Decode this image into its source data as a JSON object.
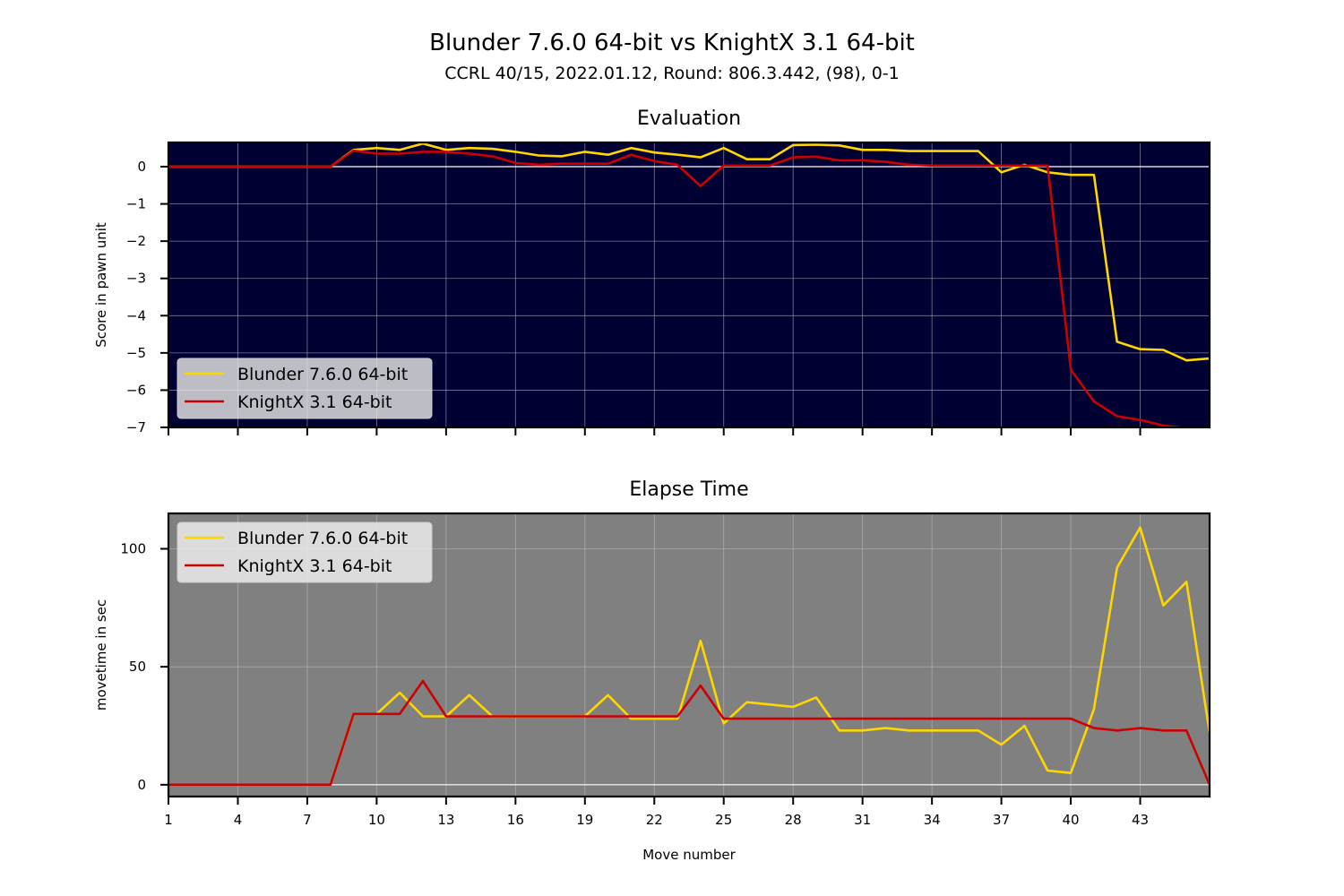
{
  "figure": {
    "title": "Blunder 7.6.0 64-bit vs KnightX 3.1 64-bit",
    "subtitle": "CCRL 40/15, 2022.01.12, Round: 806.3.442, (98), 0-1"
  },
  "colors": {
    "blunder": "#ffd700",
    "knightx": "#cc0000",
    "eval_bg": "#000033",
    "time_bg": "#808080"
  },
  "chart_data": [
    {
      "type": "line",
      "title": "Evaluation",
      "xlabel": "",
      "ylabel": "Score in pawn unit",
      "xlim": [
        1,
        46
      ],
      "ylim": [
        -7,
        0.65
      ],
      "x_ticks": [
        1,
        4,
        7,
        10,
        13,
        16,
        19,
        22,
        25,
        28,
        31,
        34,
        37,
        40,
        43
      ],
      "x_tick_labels_visible": false,
      "y_ticks": [
        0,
        -1,
        -2,
        -3,
        -4,
        -5,
        -6,
        -7
      ],
      "y_tick_labels": [
        "0",
        "−1",
        "−2",
        "−3",
        "−4",
        "−5",
        "−6",
        "−7"
      ],
      "grid": true,
      "legend": "lower-left",
      "x": [
        1,
        2,
        3,
        4,
        5,
        6,
        7,
        8,
        9,
        10,
        11,
        12,
        13,
        14,
        15,
        16,
        17,
        18,
        19,
        20,
        21,
        22,
        23,
        24,
        25,
        26,
        27,
        28,
        29,
        30,
        31,
        32,
        33,
        34,
        35,
        36,
        37,
        38,
        39,
        40,
        41,
        42,
        43,
        44,
        45,
        46
      ],
      "series": [
        {
          "name": "Blunder 7.6.0 64-bit",
          "color": "#ffd700",
          "values": [
            0,
            0,
            0,
            0,
            0,
            0,
            0,
            0,
            0.45,
            0.5,
            0.45,
            0.62,
            0.45,
            0.5,
            0.48,
            0.4,
            0.3,
            0.28,
            0.4,
            0.32,
            0.5,
            0.38,
            0.32,
            0.25,
            0.5,
            0.2,
            0.2,
            0.58,
            0.59,
            0.57,
            0.45,
            0.45,
            0.42,
            0.42,
            0.42,
            0.42,
            -0.15,
            0.05,
            -0.15,
            -0.22,
            -0.22,
            -4.7,
            -4.9,
            -4.92,
            -5.2,
            -5.15
          ]
        },
        {
          "name": "KnightX 3.1 64-bit",
          "color": "#cc0000",
          "values": [
            0,
            0,
            0,
            0,
            0,
            0,
            0,
            0,
            0.43,
            0.35,
            0.35,
            0.4,
            0.4,
            0.35,
            0.28,
            0.1,
            0.05,
            0.08,
            0.08,
            0.08,
            0.32,
            0.15,
            0.05,
            -0.52,
            0.03,
            0.03,
            0.03,
            0.25,
            0.27,
            0.17,
            0.17,
            0.13,
            0.05,
            0.03,
            0.03,
            0.03,
            0.03,
            0.03,
            0.03,
            -5.45,
            -6.3,
            -6.7,
            -6.8,
            -6.95,
            -7.02,
            -7.0
          ]
        }
      ]
    },
    {
      "type": "line",
      "title": "Elapse Time",
      "xlabel": "Move number",
      "ylabel": "movetime in sec",
      "xlim": [
        1,
        46
      ],
      "ylim": [
        -5,
        115
      ],
      "x_ticks": [
        1,
        4,
        7,
        10,
        13,
        16,
        19,
        22,
        25,
        28,
        31,
        34,
        37,
        40,
        43
      ],
      "x_tick_labels": [
        "1",
        "4",
        "7",
        "10",
        "13",
        "16",
        "19",
        "22",
        "25",
        "28",
        "31",
        "34",
        "37",
        "40",
        "43"
      ],
      "y_ticks": [
        0,
        50,
        100
      ],
      "y_tick_labels": [
        "0",
        "50",
        "100"
      ],
      "grid": true,
      "legend": "top-left",
      "x": [
        1,
        2,
        3,
        4,
        5,
        6,
        7,
        8,
        9,
        10,
        11,
        12,
        13,
        14,
        15,
        16,
        17,
        18,
        19,
        20,
        21,
        22,
        23,
        24,
        25,
        26,
        27,
        28,
        29,
        30,
        31,
        32,
        33,
        34,
        35,
        36,
        37,
        38,
        39,
        40,
        41,
        42,
        43,
        44,
        45,
        46
      ],
      "series": [
        {
          "name": "Blunder 7.6.0 64-bit",
          "color": "#ffd700",
          "values": [
            0,
            0,
            0,
            0,
            0,
            0,
            0,
            0,
            30,
            30,
            39,
            29,
            29,
            38,
            29,
            29,
            29,
            29,
            29,
            38,
            28,
            28,
            28,
            61,
            26,
            35,
            34,
            33,
            37,
            23,
            23,
            24,
            23,
            23,
            23,
            23,
            17,
            25,
            6,
            5,
            32,
            92,
            109,
            76,
            86,
            22
          ]
        },
        {
          "name": "KnightX 3.1 64-bit",
          "color": "#cc0000",
          "values": [
            0,
            0,
            0,
            0,
            0,
            0,
            0,
            0,
            30,
            30,
            30,
            44,
            29,
            29,
            29,
            29,
            29,
            29,
            29,
            29,
            29,
            29,
            29,
            42,
            28,
            28,
            28,
            28,
            28,
            28,
            28,
            28,
            28,
            28,
            28,
            28,
            28,
            28,
            28,
            28,
            24,
            23,
            24,
            23,
            23,
            0
          ]
        }
      ]
    }
  ]
}
